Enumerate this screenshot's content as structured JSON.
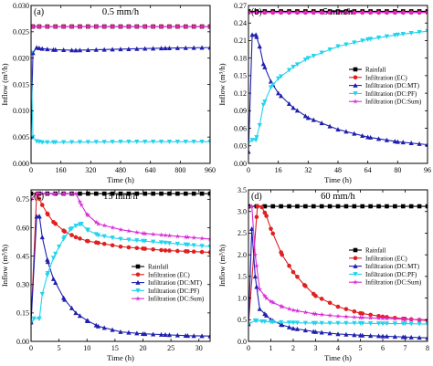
{
  "colors": {
    "Rainfall": "#000000",
    "Infiltration (EC)": "#e02020",
    "Infiltration (DC:MT)": "#1f1fb0",
    "Infiltration (DC:PF)": "#22d3ee",
    "Infiltration (DC:Sum)": "#d82bd8"
  },
  "legend_labels": [
    "Rainfall",
    "Infiltration (EC)",
    "Infiltration (DC:MT)",
    "Infiltration (DC:PF)",
    "Infiltration (DC:Sum)"
  ],
  "chart_data": [
    {
      "type": "line",
      "panel_label": "(a)",
      "title": "0.5 mm/h",
      "xlabel": "Time (h)",
      "ylabel": "Inflow (m³/h)",
      "xlim": [
        0,
        960
      ],
      "ylim": [
        0,
        0.03
      ],
      "xticks": [
        0,
        160,
        320,
        480,
        640,
        800,
        960
      ],
      "yticks": [
        0.0,
        0.005,
        0.01,
        0.015,
        0.02,
        0.025,
        0.03
      ],
      "ytick_labels": [
        "0.000",
        "0.005",
        "0.010",
        "0.015",
        "0.020",
        "0.025",
        "0.030"
      ],
      "legend": false,
      "series": [
        {
          "name": "Rainfall",
          "marker": "square",
          "x": [
            0,
            10,
            960
          ],
          "y": [
            0.026,
            0.026,
            0.026
          ]
        },
        {
          "name": "Infiltration (EC)",
          "marker": "circle",
          "x": [
            0,
            10,
            960
          ],
          "y": [
            0.026,
            0.026,
            0.026
          ]
        },
        {
          "name": "Infiltration (DC:MT)",
          "marker": "triangle-up",
          "x": [
            0,
            10,
            30,
            60,
            120,
            240,
            480,
            720,
            960
          ],
          "y": [
            0.005,
            0.021,
            0.022,
            0.0218,
            0.0216,
            0.0215,
            0.0217,
            0.0219,
            0.022
          ]
        },
        {
          "name": "Infiltration (DC:PF)",
          "marker": "triangle-down",
          "x": [
            0,
            10,
            30,
            60,
            120,
            480,
            960
          ],
          "y": [
            0.021,
            0.005,
            0.0042,
            0.004,
            0.004,
            0.0041,
            0.0041
          ]
        },
        {
          "name": "Infiltration (DC:Sum)",
          "marker": "star",
          "x": [
            0,
            10,
            960
          ],
          "y": [
            0.026,
            0.026,
            0.026
          ]
        }
      ]
    },
    {
      "type": "line",
      "panel_label": "(b)",
      "title": "5 mm/h",
      "xlabel": "Time (h)",
      "ylabel": "Inflow (m³/h)",
      "xlim": [
        0,
        96
      ],
      "ylim": [
        0,
        0.27
      ],
      "xticks": [
        0,
        16,
        32,
        48,
        64,
        80,
        96
      ],
      "yticks": [
        0.0,
        0.03,
        0.06,
        0.09,
        0.12,
        0.15,
        0.18,
        0.21,
        0.24,
        0.27
      ],
      "ytick_labels": [
        "0.00",
        "0.03",
        "0.06",
        "0.09",
        "0.12",
        "0.15",
        "0.18",
        "0.21",
        "0.24",
        "0.27"
      ],
      "legend": true,
      "series": [
        {
          "name": "Rainfall",
          "marker": "square",
          "x": [
            0,
            96
          ],
          "y": [
            0.26,
            0.26
          ]
        },
        {
          "name": "Infiltration (EC)",
          "marker": "circle",
          "x": [
            0,
            96
          ],
          "y": [
            0.258,
            0.258
          ]
        },
        {
          "name": "Infiltration (DC:MT)",
          "marker": "triangle-up",
          "x": [
            0,
            2,
            4,
            6,
            8,
            12,
            16,
            24,
            32,
            48,
            64,
            80,
            96
          ],
          "y": [
            0.02,
            0.22,
            0.22,
            0.2,
            0.17,
            0.14,
            0.12,
            0.095,
            0.078,
            0.058,
            0.045,
            0.037,
            0.032
          ]
        },
        {
          "name": "Infiltration (DC:PF)",
          "marker": "triangle-down",
          "x": [
            0,
            2,
            4,
            6,
            8,
            12,
            16,
            24,
            32,
            48,
            64,
            80,
            96
          ],
          "y": [
            0.035,
            0.04,
            0.04,
            0.065,
            0.1,
            0.13,
            0.145,
            0.165,
            0.18,
            0.2,
            0.212,
            0.22,
            0.226
          ]
        },
        {
          "name": "Infiltration (DC:Sum)",
          "marker": "star",
          "x": [
            0,
            96
          ],
          "y": [
            0.258,
            0.258
          ]
        }
      ]
    },
    {
      "type": "line",
      "panel_label": "(c)",
      "title": "15 mm/h",
      "xlabel": "Time (h)",
      "ylabel": "Inflow (m³/h)",
      "xlim": [
        0,
        32
      ],
      "ylim": [
        0,
        0.8
      ],
      "xticks": [
        0,
        5,
        10,
        15,
        20,
        25,
        30
      ],
      "yticks": [
        0.0,
        0.15,
        0.3,
        0.45,
        0.6,
        0.75
      ],
      "ytick_labels": [
        "0.00",
        "0.15",
        "0.30",
        "0.45",
        "0.60",
        "0.75"
      ],
      "legend": true,
      "series": [
        {
          "name": "Rainfall",
          "marker": "square",
          "x": [
            0,
            32
          ],
          "y": [
            0.78,
            0.78
          ]
        },
        {
          "name": "Infiltration (EC)",
          "marker": "circle",
          "x": [
            0,
            1,
            2,
            3,
            4,
            6,
            8,
            10,
            12,
            16,
            20,
            24,
            28,
            32
          ],
          "y": [
            0.1,
            0.78,
            0.72,
            0.67,
            0.63,
            0.58,
            0.55,
            0.53,
            0.52,
            0.5,
            0.49,
            0.48,
            0.475,
            0.47
          ]
        },
        {
          "name": "Infiltration (DC:MT)",
          "marker": "triangle-up",
          "x": [
            0,
            1,
            1.5,
            2,
            3,
            4,
            6,
            8,
            10,
            12,
            16,
            20,
            24,
            28,
            32
          ],
          "y": [
            0.1,
            0.66,
            0.66,
            0.55,
            0.42,
            0.33,
            0.22,
            0.15,
            0.11,
            0.08,
            0.05,
            0.04,
            0.035,
            0.03,
            0.028
          ]
        },
        {
          "name": "Infiltration (DC:PF)",
          "marker": "triangle-down",
          "x": [
            0,
            0.5,
            1.5,
            2,
            3,
            4,
            5,
            6,
            7,
            8,
            9,
            10,
            12,
            16,
            20,
            24,
            28,
            32
          ],
          "y": [
            0.1,
            0.12,
            0.12,
            0.25,
            0.36,
            0.44,
            0.5,
            0.55,
            0.59,
            0.61,
            0.62,
            0.59,
            0.56,
            0.54,
            0.53,
            0.52,
            0.51,
            0.5
          ]
        },
        {
          "name": "Infiltration (DC:Sum)",
          "marker": "star",
          "x": [
            0,
            1,
            2,
            4,
            6,
            8,
            9,
            10,
            12,
            16,
            20,
            24,
            28,
            32
          ],
          "y": [
            0.75,
            0.78,
            0.78,
            0.78,
            0.78,
            0.78,
            0.72,
            0.67,
            0.62,
            0.59,
            0.57,
            0.56,
            0.55,
            0.54
          ]
        }
      ]
    },
    {
      "type": "line",
      "panel_label": "(d)",
      "title": "60 mm/h",
      "xlabel": "Time (h)",
      "ylabel": "Inflow (m³/h)",
      "xlim": [
        0,
        8
      ],
      "ylim": [
        0,
        3.5
      ],
      "xticks": [
        0,
        1,
        2,
        3,
        4,
        5,
        6,
        7,
        8
      ],
      "yticks": [
        0.0,
        0.5,
        1.0,
        1.5,
        2.0,
        2.5,
        3.0,
        3.5
      ],
      "ytick_labels": [
        "0.0",
        "0.5",
        "1.0",
        "1.5",
        "2.0",
        "2.5",
        "3.0",
        "3.5"
      ],
      "legend": true,
      "series": [
        {
          "name": "Rainfall",
          "marker": "square",
          "x": [
            0,
            8
          ],
          "y": [
            3.12,
            3.12
          ]
        },
        {
          "name": "Infiltration (EC)",
          "marker": "circle",
          "x": [
            0,
            0.4,
            0.6,
            0.8,
            1,
            1.5,
            2,
            2.5,
            3,
            4,
            5,
            6,
            7,
            8
          ],
          "y": [
            0.4,
            3.12,
            3.1,
            2.9,
            2.6,
            2.0,
            1.6,
            1.3,
            1.05,
            0.8,
            0.65,
            0.57,
            0.52,
            0.48
          ]
        },
        {
          "name": "Infiltration (DC:MT)",
          "marker": "triangle-up",
          "x": [
            0,
            0.15,
            0.3,
            0.5,
            0.8,
            1,
            1.5,
            2,
            3,
            4,
            5,
            6,
            7,
            8
          ],
          "y": [
            0.4,
            2.6,
            1.5,
            0.75,
            0.6,
            0.5,
            0.38,
            0.3,
            0.22,
            0.17,
            0.14,
            0.12,
            0.1,
            0.08
          ]
        },
        {
          "name": "Infiltration (DC:PF)",
          "marker": "triangle-down",
          "x": [
            0,
            0.3,
            0.6,
            1,
            2,
            3,
            4,
            5,
            6,
            7,
            8
          ],
          "y": [
            0.4,
            0.48,
            0.46,
            0.45,
            0.43,
            0.42,
            0.42,
            0.42,
            0.41,
            0.41,
            0.4
          ]
        },
        {
          "name": "Infiltration (DC:Sum)",
          "marker": "star",
          "x": [
            0,
            0.15,
            0.3,
            0.5,
            0.8,
            1,
            1.5,
            2,
            3,
            4,
            5,
            6,
            7,
            8
          ],
          "y": [
            3.1,
            3.12,
            2.0,
            1.2,
            1.0,
            0.92,
            0.8,
            0.72,
            0.63,
            0.58,
            0.55,
            0.53,
            0.51,
            0.5
          ]
        }
      ]
    }
  ]
}
